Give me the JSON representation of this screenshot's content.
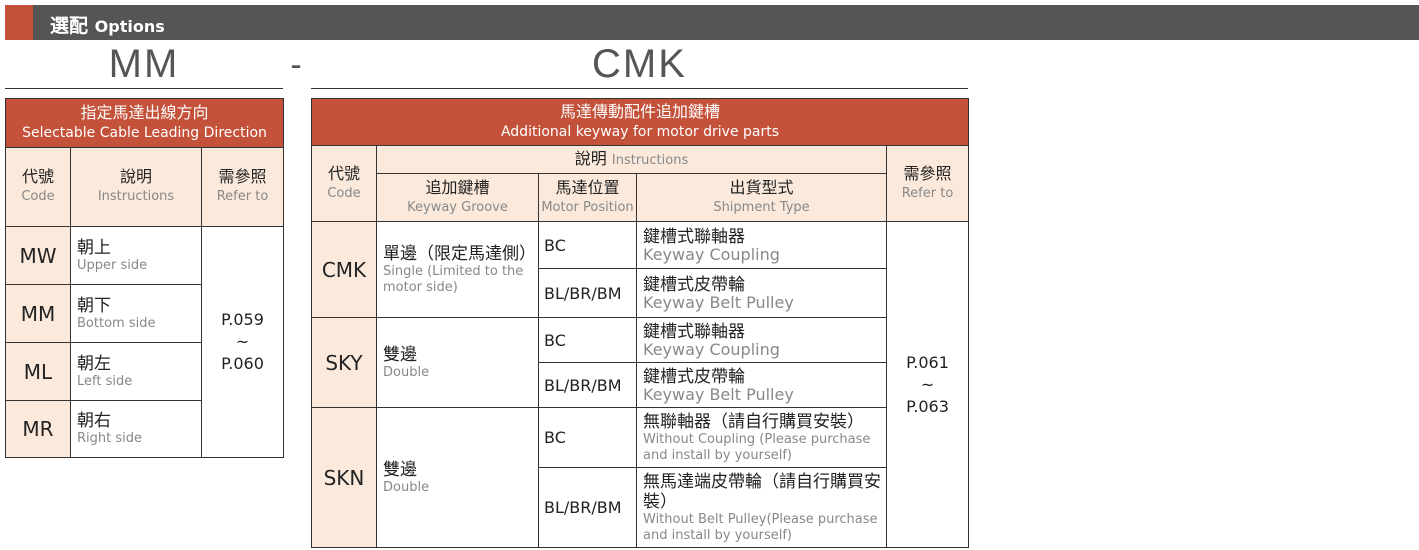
{
  "header": {
    "title_zh": "選配",
    "title_en": "Options",
    "accent": "#c4513a",
    "bar": "#565455"
  },
  "left": {
    "code": "MM",
    "title_zh": "指定馬達出線方向",
    "title_en": "Selectable Cable Leading Direction",
    "cols": [
      {
        "zh": "代號",
        "en": "Code"
      },
      {
        "zh": "說明",
        "en": "Instructions"
      },
      {
        "zh": "需參照",
        "en": "Refer to"
      }
    ],
    "rows": [
      {
        "code": "MW",
        "zh": "朝上",
        "en": "Upper side"
      },
      {
        "code": "MM",
        "zh": "朝下",
        "en": "Bottom side"
      },
      {
        "code": "ML",
        "zh": "朝左",
        "en": "Left side"
      },
      {
        "code": "MR",
        "zh": "朝右",
        "en": "Right side"
      }
    ],
    "ref": [
      "P.059",
      "~",
      "P.060"
    ]
  },
  "separator": "-",
  "right": {
    "code": "CMK",
    "title_zh": "馬達傳動配件追加鍵槽",
    "title_en": "Additional keyway for motor drive parts",
    "cols": {
      "code": {
        "zh": "代號",
        "en": "Code"
      },
      "instr": {
        "zh": "說明",
        "en": "Instructions"
      },
      "groove": {
        "zh": "追加鍵槽",
        "en": "Keyway Groove"
      },
      "pos": {
        "zh": "馬達位置",
        "en": "Motor Position"
      },
      "ship": {
        "zh": "出貨型式",
        "en": "Shipment Type"
      },
      "ref": {
        "zh": "需參照",
        "en": "Refer to"
      }
    },
    "rows": [
      {
        "code": "CMK",
        "zh": "單邊（限定馬達側）",
        "en": "Single (Limited to the motor side)",
        "subs": [
          {
            "pos": "BC",
            "zh": "鍵槽式聯軸器",
            "en": "Keyway Coupling"
          },
          {
            "pos": "BL/BR/BM",
            "zh": "鍵槽式皮帶輪",
            "en": "Keyway Belt Pulley"
          }
        ]
      },
      {
        "code": "SKY",
        "zh": "雙邊",
        "en": "Double",
        "subs": [
          {
            "pos": "BC",
            "zh": "鍵槽式聯軸器",
            "en": "Keyway Coupling"
          },
          {
            "pos": "BL/BR/BM",
            "zh": "鍵槽式皮帶輪",
            "en": "Keyway Belt Pulley"
          }
        ]
      },
      {
        "code": "SKN",
        "zh": "雙邊",
        "en": "Double",
        "subs": [
          {
            "pos": "BC",
            "zh": "無聯軸器（請自行購買安裝）",
            "en": "Without Coupling (Please purchase and install by yourself)"
          },
          {
            "pos": "BL/BR/BM",
            "zh": "無馬達端皮帶輪（請自行購買安裝）",
            "en": "Without Belt Pulley(Please purchase and install by yourself)"
          }
        ]
      }
    ],
    "ref": [
      "P.061",
      "~",
      "P.063"
    ]
  }
}
